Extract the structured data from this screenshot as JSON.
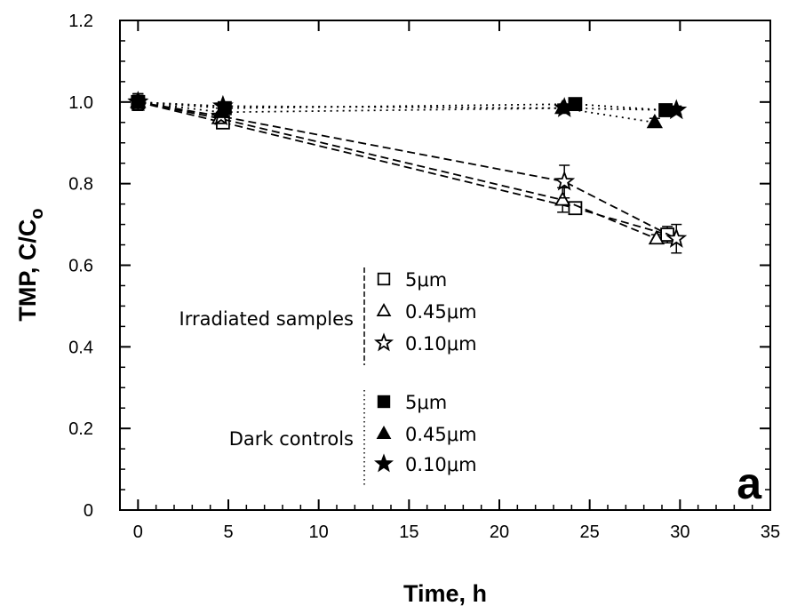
{
  "chart_data": {
    "type": "line",
    "xlabel": "Time, h",
    "ylabel": "TMP, C/C",
    "ylabel_subscript": "o",
    "xlim": [
      -1,
      35
    ],
    "ylim": [
      0,
      1.2
    ],
    "xticks": [
      0,
      5,
      10,
      15,
      20,
      25,
      30,
      35
    ],
    "xtick_labels": [
      "0",
      "5",
      "10",
      "15",
      "20",
      "25",
      "30",
      "35"
    ],
    "yticks": [
      0,
      0.2,
      0.4,
      0.6,
      0.8,
      1.0,
      1.2
    ],
    "ytick_labels": [
      "0",
      "0.2",
      "0.4",
      "0.6",
      "0.8",
      "1.0",
      "1.2"
    ],
    "grid": false,
    "panel_label": "a",
    "legend_groups": [
      {
        "title": "Irradiated samples",
        "line_style": "dashed",
        "entries": [
          {
            "label": "5μm",
            "marker": "open-square"
          },
          {
            "label": "0.45μm",
            "marker": "open-triangle"
          },
          {
            "label": "0.10μm",
            "marker": "open-star"
          }
        ]
      },
      {
        "title": "Dark controls",
        "line_style": "dotted",
        "entries": [
          {
            "label": "5μm",
            "marker": "filled-square"
          },
          {
            "label": "0.45μm",
            "marker": "filled-triangle"
          },
          {
            "label": "0.10μm",
            "marker": "filled-star"
          }
        ]
      }
    ],
    "series": [
      {
        "name": "5μm",
        "group": "Irradiated samples",
        "marker": "open-square",
        "line_style": "dashed",
        "x": [
          0,
          4.7,
          24.2,
          29.3
        ],
        "y": [
          1.0,
          0.95,
          0.74,
          0.675
        ],
        "err": [
          0.02,
          0.01,
          0.01,
          0.02
        ]
      },
      {
        "name": "0.45μm",
        "group": "Irradiated samples",
        "marker": "open-triangle",
        "line_style": "dashed",
        "x": [
          0,
          4.5,
          23.5,
          28.7
        ],
        "y": [
          1.0,
          0.96,
          0.76,
          0.665
        ],
        "err": [
          0.02,
          0.01,
          0.03,
          0.01
        ]
      },
      {
        "name": "0.10μm",
        "group": "Irradiated samples",
        "marker": "open-star",
        "line_style": "dashed",
        "x": [
          0,
          4.6,
          23.6,
          29.8
        ],
        "y": [
          1.0,
          0.965,
          0.805,
          0.665
        ],
        "err": [
          0.02,
          0.01,
          0.04,
          0.035
        ]
      },
      {
        "name": "5μm",
        "group": "Dark controls",
        "marker": "filled-square",
        "line_style": "dotted",
        "x": [
          0,
          4.8,
          24.2,
          29.2
        ],
        "y": [
          1.0,
          0.985,
          0.995,
          0.98
        ],
        "err": [
          0.02,
          0.01,
          0.01,
          0.01
        ]
      },
      {
        "name": "0.45μm",
        "group": "Dark controls",
        "marker": "filled-triangle",
        "line_style": "dotted",
        "x": [
          0,
          4.6,
          23.5,
          28.6
        ],
        "y": [
          1.0,
          0.975,
          0.985,
          0.95
        ],
        "err": [
          0.02,
          0.01,
          0.01,
          0.01
        ]
      },
      {
        "name": "0.10μm",
        "group": "Dark controls",
        "marker": "filled-star",
        "line_style": "dotted",
        "x": [
          0,
          4.7,
          23.6,
          29.8
        ],
        "y": [
          1.0,
          0.99,
          0.985,
          0.98
        ],
        "err": [
          0.02,
          0.01,
          0.01,
          0.01
        ]
      }
    ]
  }
}
